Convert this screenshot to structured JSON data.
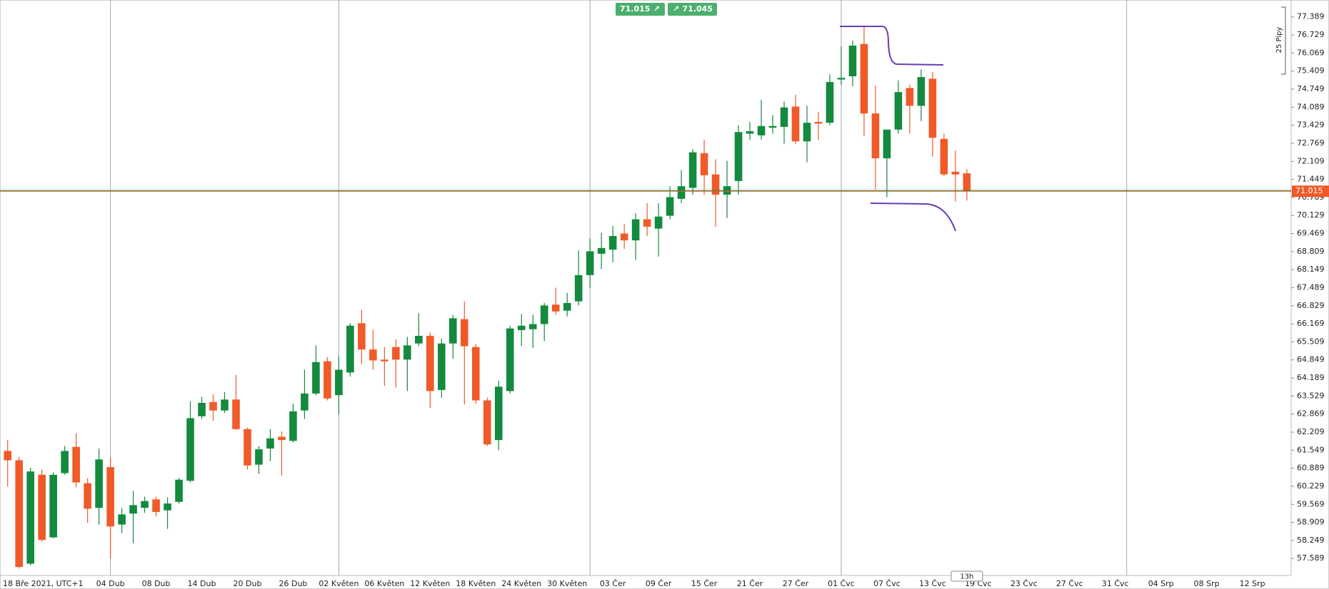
{
  "chart_data": {
    "type": "candlestick",
    "categories": [
      "18 Bře 2021, UTC+1",
      null,
      null,
      null,
      null,
      null,
      null,
      null,
      null,
      "04 Dub",
      null,
      null,
      null,
      "08 Dub",
      null,
      null,
      null,
      "14 Dub",
      null,
      null,
      null,
      "20 Dub",
      null,
      null,
      null,
      "26 Dub",
      null,
      null,
      null,
      "02 Květen",
      null,
      null,
      null,
      "06 Květen",
      null,
      null,
      null,
      "12 Květen",
      null,
      null,
      null,
      "18 Květen",
      null,
      null,
      null,
      "24 Květen",
      null,
      null,
      null,
      "30 Květen",
      null,
      null,
      null,
      "03 Čer",
      null,
      null,
      null,
      "09 Čer",
      null,
      null,
      null,
      "15 Čer",
      null,
      null,
      null,
      "21 Čer",
      null,
      null,
      null,
      "27 Čer",
      null,
      null,
      null,
      "01 Čvc",
      null,
      null,
      null,
      "07 Čvc",
      null,
      null,
      null,
      "13 Čvc",
      null,
      null,
      null,
      "19 Čvc",
      null,
      null,
      null,
      "23 Čvc",
      null,
      null,
      null,
      "27 Čvc",
      null,
      null,
      null,
      "31 Čvc",
      null,
      null,
      null,
      "04 Srp",
      null,
      null,
      null,
      "08 Srp",
      null,
      null,
      null,
      "12 Srp"
    ],
    "open": [
      61.52,
      61.18,
      57.4,
      60.65,
      58.36,
      60.71,
      61.67,
      60.34,
      59.44,
      60.93,
      58.83,
      59.23,
      59.44,
      59.75,
      59.35,
      59.66,
      60.43,
      62.79,
      63.31,
      63.0,
      63.4,
      62.32,
      61.02,
      61.61,
      62.04,
      61.89,
      63.0,
      63.62,
      64.8,
      63.56,
      64.39,
      66.19,
      65.23,
      64.86,
      65.32,
      64.86,
      65.45,
      65.73,
      63.75,
      65.45,
      66.34,
      65.32,
      63.37,
      61.92,
      63.71,
      65.94,
      65.97,
      66.16,
      66.87,
      66.65,
      66.99,
      67.95,
      68.73,
      68.88,
      69.47,
      69.22,
      69.99,
      69.65,
      70.12,
      70.74,
      71.14,
      72.41,
      71.63,
      70.89,
      71.39,
      73.12,
      73.06,
      73.34,
      73.37,
      74.11,
      72.84,
      73.55,
      73.52,
      75.1,
      75.22,
      76.4,
      73.86,
      72.22,
      73.27,
      74.79,
      74.14,
      75.13,
      72.93,
      71.73,
      71.67,
      null,
      null,
      null,
      null,
      null,
      null,
      null,
      null,
      null,
      null,
      null,
      null,
      null,
      null,
      null,
      null,
      null,
      null,
      null,
      null,
      null,
      null,
      null,
      null,
      null
    ],
    "high": [
      61.92,
      61.3,
      60.9,
      60.84,
      60.74,
      61.7,
      62.17,
      60.53,
      61.61,
      61.3,
      59.44,
      60.06,
      59.85,
      59.85,
      59.82,
      60.53,
      63.34,
      63.5,
      63.59,
      63.68,
      64.3,
      62.38,
      61.7,
      62.32,
      62.23,
      63.25,
      64.49,
      65.38,
      64.95,
      65.01,
      66.19,
      66.68,
      65.94,
      65.32,
      65.6,
      65.69,
      66.56,
      65.85,
      65.63,
      66.5,
      66.99,
      65.42,
      63.47,
      64.09,
      66.1,
      66.53,
      66.5,
      66.93,
      67.49,
      67.3,
      68.85,
      69.28,
      69.5,
      69.75,
      69.81,
      70.21,
      70.58,
      70.58,
      71.2,
      71.79,
      72.56,
      72.9,
      72.19,
      72.13,
      73.43,
      73.55,
      74.36,
      73.8,
      74.3,
      74.54,
      74.14,
      73.92,
      75.29,
      76.31,
      76.52,
      77.02,
      74.88,
      73.27,
      75.07,
      74.91,
      75.47,
      75.38,
      73.12,
      72.5,
      71.82,
      null,
      null,
      null,
      null,
      null,
      null,
      null,
      null,
      null,
      null,
      null,
      null,
      null,
      null,
      null,
      null,
      null,
      null,
      null,
      null,
      null,
      null,
      null,
      null,
      null
    ],
    "low": [
      60.22,
      57.22,
      57.34,
      58.21,
      58.33,
      60.65,
      60.19,
      58.89,
      58.83,
      57.59,
      58.52,
      58.14,
      59.26,
      59.13,
      58.67,
      59.6,
      60.37,
      62.69,
      62.63,
      62.91,
      62.29,
      60.84,
      60.68,
      61.15,
      60.62,
      61.83,
      62.69,
      63.56,
      63.37,
      62.85,
      64.24,
      64.7,
      64.49,
      63.9,
      63.84,
      63.71,
      65.35,
      63.1,
      63.47,
      64.89,
      63.22,
      63.25,
      61.7,
      61.55,
      63.62,
      65.35,
      65.29,
      65.54,
      66.5,
      66.44,
      66.84,
      67.49,
      68.17,
      68.42,
      68.91,
      68.51,
      69.38,
      68.63,
      69.99,
      70.58,
      70.89,
      70.89,
      69.72,
      70.03,
      70.89,
      72.9,
      72.9,
      73.12,
      72.75,
      72.75,
      72.07,
      72.9,
      73.43,
      74.91,
      74.85,
      73.03,
      71.08,
      70.8,
      73.12,
      73.12,
      73.58,
      72.28,
      71.57,
      70.64,
      70.68,
      null,
      null,
      null,
      null,
      null,
      null,
      null,
      null,
      null,
      null,
      null,
      null,
      null,
      null,
      null,
      null,
      null,
      null,
      null,
      null,
      null,
      null,
      null,
      null,
      null
    ],
    "close": [
      61.18,
      57.28,
      60.77,
      58.27,
      60.65,
      61.52,
      60.37,
      59.41,
      61.21,
      58.76,
      59.2,
      59.54,
      59.69,
      59.29,
      59.6,
      60.47,
      62.72,
      63.28,
      63.0,
      63.4,
      62.32,
      60.99,
      61.58,
      61.98,
      61.92,
      62.97,
      63.62,
      64.77,
      63.44,
      64.49,
      66.1,
      65.23,
      64.83,
      64.8,
      64.86,
      65.38,
      65.73,
      63.71,
      65.45,
      66.37,
      65.35,
      63.37,
      61.76,
      63.87,
      66.0,
      66.1,
      66.16,
      66.84,
      66.62,
      66.93,
      67.95,
      68.82,
      68.94,
      69.38,
      69.22,
      69.99,
      69.72,
      70.09,
      70.8,
      71.2,
      72.44,
      71.6,
      70.89,
      71.2,
      73.18,
      73.21,
      73.4,
      73.4,
      74.08,
      72.84,
      73.52,
      73.49,
      75.01,
      75.16,
      76.34,
      73.86,
      72.22,
      73.27,
      74.64,
      74.14,
      75.19,
      72.97,
      71.63,
      71.63,
      71.015,
      null,
      null,
      null,
      null,
      null,
      null,
      null,
      null,
      null,
      null,
      null,
      null,
      null,
      null,
      null,
      null,
      null,
      null,
      null,
      null,
      null,
      null,
      null,
      null,
      null
    ],
    "up_color": "#138a3d",
    "down_color": "#f05a28",
    "ylim": [
      56.969,
      78.008
    ],
    "yticks": [
      77.389,
      76.729,
      76.069,
      75.409,
      74.749,
      74.089,
      73.429,
      72.769,
      72.109,
      71.449,
      70.789,
      70.129,
      69.469,
      68.809,
      68.149,
      67.489,
      66.829,
      66.169,
      65.509,
      64.849,
      64.189,
      63.529,
      62.869,
      62.209,
      61.549,
      60.889,
      60.229,
      59.569,
      58.909,
      58.249,
      57.589
    ],
    "xgrid": [
      9,
      29,
      51,
      73,
      98
    ],
    "bid": 71.015,
    "ask": 71.045,
    "countdown": "13h",
    "pip_ruler": "25 Pipy"
  }
}
